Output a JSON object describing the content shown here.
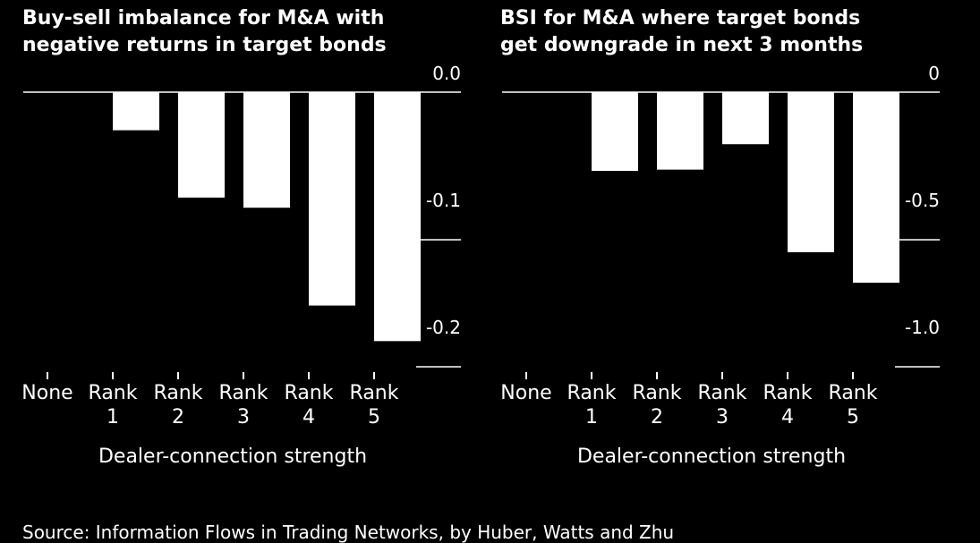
{
  "colors": {
    "background": "#000000",
    "foreground": "#ffffff"
  },
  "chart_data": [
    {
      "type": "bar",
      "title_lines": [
        "Buy-sell imbalance for M&A with",
        "negative returns in target bonds"
      ],
      "xlabel": "Dealer-connection strength",
      "categories": [
        [
          "None"
        ],
        [
          "Rank",
          "1"
        ],
        [
          "Rank",
          "2"
        ],
        [
          "Rank",
          "3"
        ],
        [
          "Rank",
          "4"
        ],
        [
          "Rank",
          "5"
        ]
      ],
      "values": [
        0,
        -0.03,
        -0.083,
        -0.091,
        -0.168,
        -0.196
      ],
      "yticks": [
        0.0,
        -0.1,
        -0.2
      ],
      "ytick_labels": [
        "0.0",
        "-0.1",
        "-0.2"
      ],
      "ylim": [
        -0.2,
        0.0
      ],
      "grid": false
    },
    {
      "type": "bar",
      "title_lines": [
        "BSI for M&A where target bonds",
        "get downgrade in next 3 months"
      ],
      "xlabel": "Dealer-connection strength",
      "categories": [
        [
          "None"
        ],
        [
          "Rank",
          "1"
        ],
        [
          "Rank",
          "2"
        ],
        [
          "Rank",
          "3"
        ],
        [
          "Rank",
          "4"
        ],
        [
          "Rank",
          "5"
        ]
      ],
      "values": [
        0,
        -0.31,
        -0.305,
        -0.205,
        -0.63,
        -0.75
      ],
      "yticks": [
        0,
        -0.5,
        -1.0
      ],
      "ytick_labels": [
        "0",
        "-0.5",
        "-1.0"
      ],
      "ylim": [
        -1.0,
        0.0
      ],
      "grid": false
    }
  ],
  "source": "Source: Information Flows in Trading Networks, by Huber, Watts and Zhu"
}
